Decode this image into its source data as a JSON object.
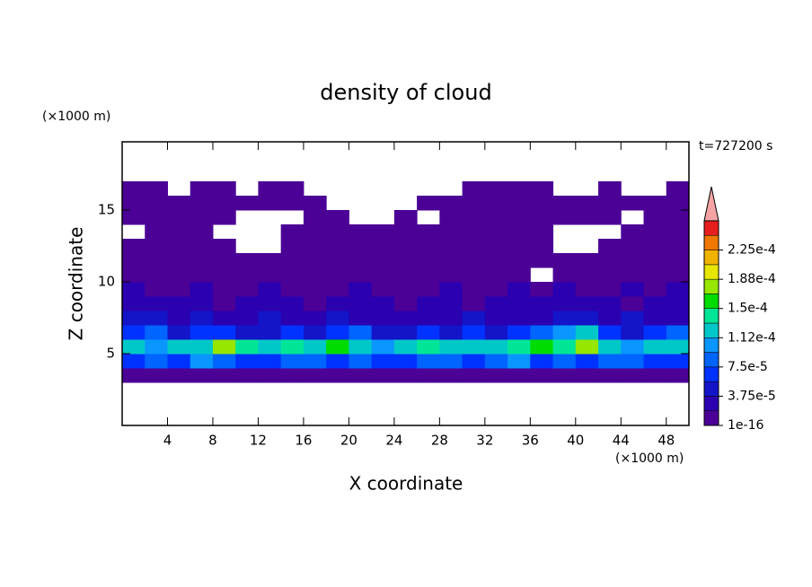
{
  "chart_data": {
    "type": "contour",
    "title": "density of cloud",
    "x_label": "X coordinate",
    "y_label": "Z coordinate",
    "x_unit": "(×1000 m)",
    "y_unit": "(×1000 m)",
    "time_label": "t=727200 s",
    "xlim": [
      0,
      50
    ],
    "ylim": [
      0,
      19.75
    ],
    "xticks": [
      4,
      8,
      12,
      16,
      20,
      24,
      28,
      32,
      36,
      40,
      44,
      48
    ],
    "yticks": [
      5,
      10,
      15
    ],
    "x": [
      1,
      3,
      5,
      7,
      9,
      11,
      13,
      15,
      17,
      19,
      21,
      23,
      25,
      27,
      29,
      31,
      33,
      35,
      37,
      39,
      41,
      43,
      45,
      47,
      49
    ],
    "y": [
      0.5,
      1.5,
      2.5,
      3.5,
      4.5,
      5.5,
      6.5,
      7.5,
      8.5,
      9.5,
      10.5,
      11.5,
      12.5,
      13.5,
      14.5,
      15.5,
      16.5,
      17.5,
      18.5,
      19.5
    ],
    "levels": [
      1e-16,
      1.875e-05,
      3.75e-05,
      5.625e-05,
      7.5e-05,
      9.375e-05,
      0.0001125,
      0.00013125,
      0.00015,
      0.00016875,
      0.0001875,
      0.00020625,
      0.000225,
      0.00024375
    ],
    "colors": [
      "#4b0096",
      "#2a00b0",
      "#1414c8",
      "#0032ff",
      "#0064ff",
      "#0a96ff",
      "#00c8c8",
      "#00e696",
      "#00dc00",
      "#96e600",
      "#e6e600",
      "#f0b400",
      "#f07800",
      "#e61e1e"
    ],
    "extend_color": "#f4a4a4",
    "clim": [
      1e-16,
      0.0002625
    ],
    "colorbar_ticks": [
      {
        "value": 1e-16,
        "label": "1e-16"
      },
      {
        "value": 3.75e-05,
        "label": "3.75e-5"
      },
      {
        "value": 7.5e-05,
        "label": "7.5e-5"
      },
      {
        "value": 0.0001125,
        "label": "1.12e-4"
      },
      {
        "value": 0.00015,
        "label": "1.5e-4"
      },
      {
        "value": 0.0001875,
        "label": "1.88e-4"
      },
      {
        "value": 0.000225,
        "label": "2.25e-4"
      }
    ],
    "z": [
      [
        null,
        null,
        null,
        null,
        null,
        null,
        null,
        null,
        null,
        null,
        null,
        null,
        null,
        null,
        null,
        null,
        null,
        null,
        null,
        null,
        null,
        null,
        null,
        null,
        null
      ],
      [
        null,
        null,
        null,
        null,
        null,
        null,
        null,
        null,
        null,
        null,
        null,
        null,
        null,
        null,
        null,
        null,
        null,
        null,
        null,
        null,
        null,
        null,
        null,
        null,
        null
      ],
      [
        null,
        null,
        null,
        null,
        null,
        null,
        null,
        null,
        null,
        null,
        null,
        null,
        null,
        null,
        null,
        null,
        null,
        null,
        null,
        null,
        null,
        null,
        null,
        null,
        null
      ],
      [
        1e-06,
        1e-06,
        1e-06,
        1e-06,
        1e-06,
        1e-06,
        1e-06,
        1e-06,
        1e-06,
        1e-06,
        1e-06,
        1e-06,
        1e-06,
        1e-06,
        1e-06,
        1e-06,
        1e-06,
        1e-06,
        1e-06,
        1e-06,
        1e-06,
        1e-06,
        1e-06,
        1e-06,
        1e-06
      ],
      [
        7e-05,
        8e-05,
        6e-05,
        9.5e-05,
        8e-05,
        7e-05,
        6e-05,
        8e-05,
        9e-05,
        7e-05,
        8e-05,
        6e-05,
        7e-05,
        9e-05,
        8e-05,
        7e-05,
        8e-05,
        9.5e-05,
        6e-05,
        8e-05,
        7e-05,
        8e-05,
        9e-05,
        7e-05,
        6e-05
      ],
      [
        0.00012,
        0.00011,
        0.00013,
        0.000125,
        0.00017,
        0.00014,
        0.000115,
        0.000135,
        0.00012,
        0.00016,
        0.00013,
        0.00011,
        0.000125,
        0.00014,
        0.00012,
        0.000115,
        0.00013,
        0.000145,
        0.00015,
        0.000135,
        0.00017,
        0.00012,
        0.00011,
        0.00013,
        0.000115
      ],
      [
        6e-05,
        8e-05,
        5e-05,
        7e-05,
        6e-05,
        4e-05,
        5e-05,
        7e-05,
        5e-05,
        6e-05,
        8e-05,
        5e-05,
        4e-05,
        6e-05,
        5e-05,
        7e-05,
        5e-05,
        6e-05,
        8e-05,
        0.00011,
        0.00013,
        7e-05,
        5e-05,
        6e-05,
        8e-05
      ],
      [
        4e-05,
        5e-05,
        3e-05,
        4e-05,
        2.5e-05,
        3e-05,
        4e-05,
        3e-05,
        2.5e-05,
        4e-05,
        3e-05,
        2.5e-05,
        3e-05,
        2.5e-05,
        3e-05,
        4e-05,
        3e-05,
        2.5e-05,
        3e-05,
        4e-05,
        5e-05,
        3e-05,
        4e-05,
        3e-05,
        2.5e-05
      ],
      [
        2.5e-05,
        2e-05,
        3e-05,
        2e-05,
        1.5e-05,
        2e-05,
        2.5e-05,
        2e-05,
        1.5e-05,
        2e-05,
        2.5e-05,
        2e-05,
        1.5e-05,
        2e-05,
        2e-05,
        1.5e-05,
        2e-05,
        2.5e-05,
        2e-05,
        2e-05,
        2.5e-05,
        2e-05,
        1.5e-05,
        2e-05,
        2.5e-05
      ],
      [
        2e-05,
        1.5e-05,
        1.5e-05,
        2e-05,
        1e-05,
        1.5e-05,
        2e-05,
        1.5e-05,
        1e-05,
        1.5e-05,
        2e-05,
        1.5e-05,
        1e-05,
        1.5e-05,
        2e-05,
        1e-05,
        1.5e-05,
        2e-05,
        1.5e-05,
        2e-05,
        1.5e-05,
        1e-05,
        2e-05,
        1.5e-05,
        2e-05
      ],
      [
        1.5e-05,
        1e-05,
        8e-06,
        1e-05,
        8e-06,
        6e-06,
        5e-06,
        6e-06,
        8e-06,
        1e-05,
        8e-06,
        6e-06,
        5e-06,
        6e-06,
        8e-06,
        5e-06,
        6e-06,
        8e-06,
        null,
        1e-05,
        1e-05,
        8e-06,
        1e-05,
        1.5e-05,
        1e-05
      ],
      [
        2e-06,
        2e-06,
        2e-06,
        2e-06,
        2e-06,
        2e-06,
        2e-06,
        2e-06,
        2e-06,
        2e-06,
        2e-06,
        2e-06,
        2e-06,
        2e-06,
        2e-06,
        2e-06,
        2e-06,
        2e-06,
        2e-06,
        2e-06,
        2e-06,
        2e-06,
        2e-06,
        2e-06,
        2e-06
      ],
      [
        2e-06,
        2e-06,
        2e-06,
        2e-06,
        2e-06,
        null,
        null,
        2e-06,
        2e-06,
        2e-06,
        2e-06,
        2e-06,
        2e-06,
        2e-06,
        2e-06,
        2e-06,
        2e-06,
        2e-06,
        2e-06,
        null,
        null,
        2e-06,
        2e-06,
        2e-06,
        2e-06
      ],
      [
        null,
        2e-06,
        2e-06,
        2e-06,
        null,
        null,
        null,
        2e-06,
        2e-06,
        2e-06,
        2e-06,
        2e-06,
        2e-06,
        2e-06,
        2e-06,
        2e-06,
        2e-06,
        2e-06,
        2e-06,
        null,
        null,
        null,
        2e-06,
        2e-06,
        2e-06
      ],
      [
        2e-06,
        2e-06,
        2e-06,
        2e-06,
        2e-06,
        null,
        null,
        null,
        2e-06,
        2e-06,
        null,
        null,
        2e-06,
        null,
        2e-06,
        2e-06,
        2e-06,
        2e-06,
        2e-06,
        2e-06,
        2e-06,
        2e-06,
        null,
        2e-06,
        2e-06
      ],
      [
        2e-06,
        2e-06,
        2e-06,
        2e-06,
        2e-06,
        2e-06,
        2e-06,
        2e-06,
        2e-06,
        null,
        null,
        null,
        null,
        2e-06,
        2e-06,
        2e-06,
        2e-06,
        2e-06,
        2e-06,
        2e-06,
        2e-06,
        2e-06,
        2e-06,
        2e-06,
        2e-06
      ],
      [
        2e-06,
        2e-06,
        null,
        2e-06,
        2e-06,
        null,
        2e-06,
        2e-06,
        null,
        null,
        null,
        null,
        null,
        null,
        null,
        2e-06,
        2e-06,
        2e-06,
        2e-06,
        null,
        null,
        2e-06,
        null,
        null,
        2e-06
      ],
      [
        null,
        null,
        null,
        null,
        null,
        null,
        null,
        null,
        null,
        null,
        null,
        null,
        null,
        null,
        null,
        null,
        null,
        null,
        null,
        null,
        null,
        null,
        null,
        null,
        null
      ],
      [
        null,
        null,
        null,
        null,
        null,
        null,
        null,
        null,
        null,
        null,
        null,
        null,
        null,
        null,
        null,
        null,
        null,
        null,
        null,
        null,
        null,
        null,
        null,
        null,
        null
      ],
      [
        null,
        null,
        null,
        null,
        null,
        null,
        null,
        null,
        null,
        null,
        null,
        null,
        null,
        null,
        null,
        null,
        null,
        null,
        null,
        null,
        null,
        null,
        null,
        null,
        null
      ]
    ]
  }
}
